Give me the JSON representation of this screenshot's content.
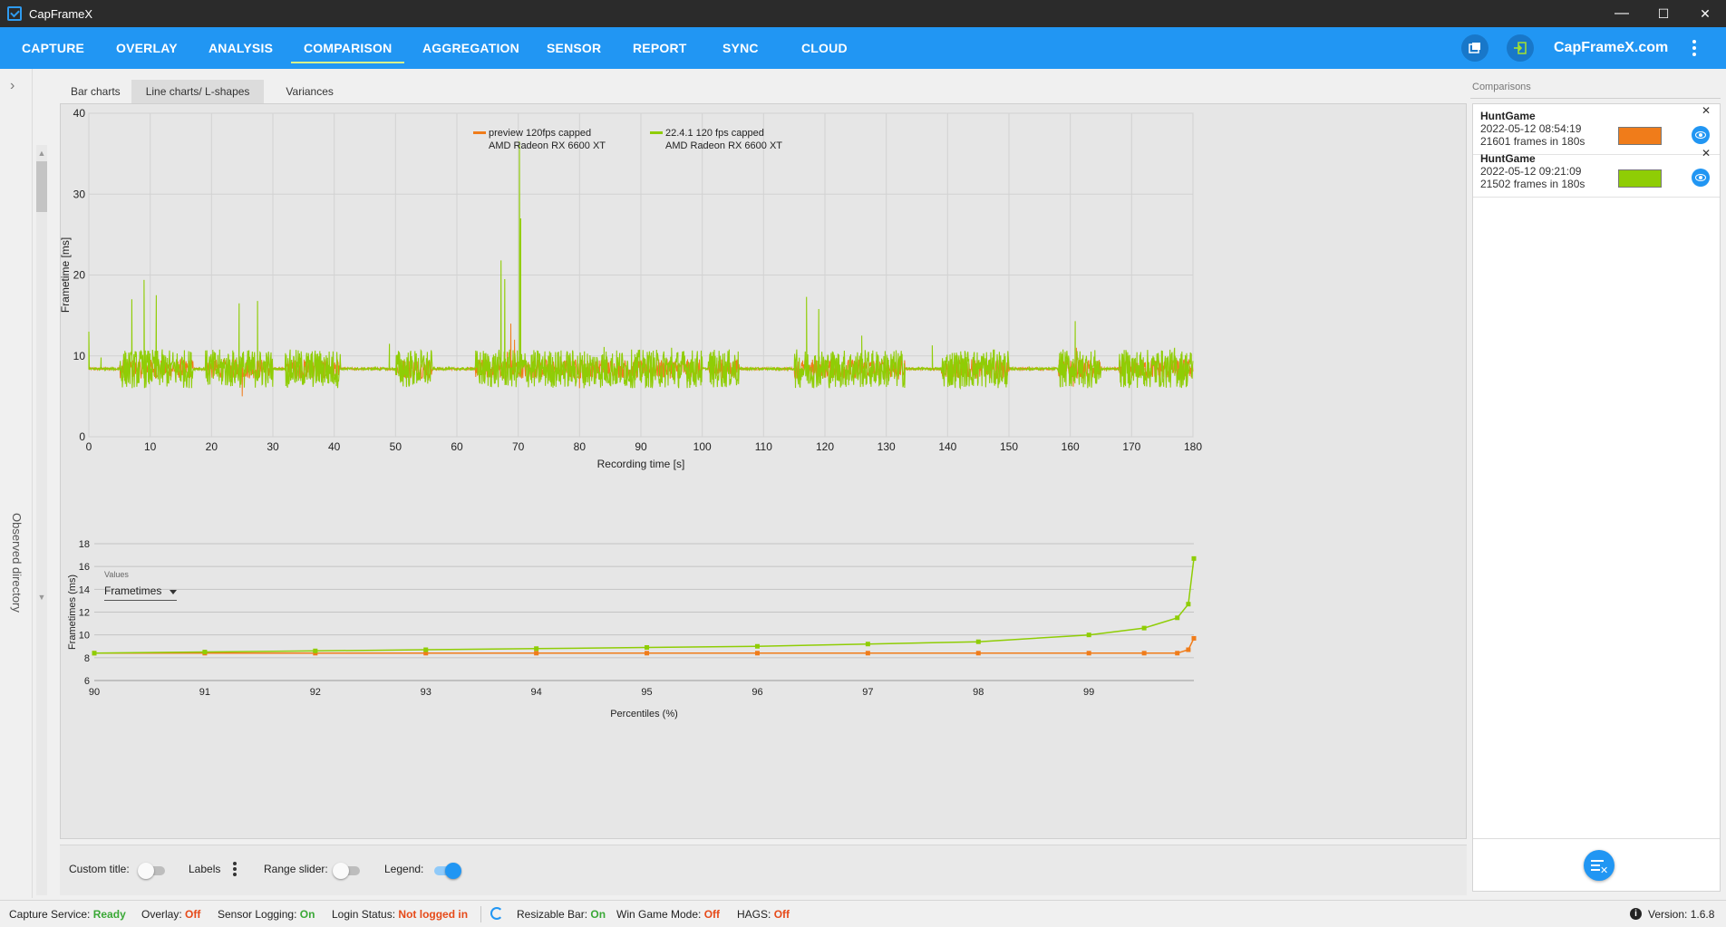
{
  "window": {
    "title": "CapFrameX",
    "minimize": "—",
    "maximize": "☐",
    "close": "✕"
  },
  "nav": {
    "items": [
      {
        "label": "CAPTURE"
      },
      {
        "label": "OVERLAY"
      },
      {
        "label": "ANALYSIS"
      },
      {
        "label": "COMPARISON"
      },
      {
        "label": "AGGREGATION"
      },
      {
        "label": "SENSOR"
      },
      {
        "label": "REPORT"
      },
      {
        "label": "SYNC"
      },
      {
        "label": "CLOUD"
      }
    ],
    "active": "COMPARISON",
    "brand": "CapFrameX.com"
  },
  "sidebar": {
    "observed_label": "Observed directory"
  },
  "subtabs": [
    {
      "label": "Bar charts"
    },
    {
      "label": "Line charts/ L-shapes"
    },
    {
      "label": "Variances"
    }
  ],
  "values_selector": {
    "label": "Values",
    "selected": "Frametimes"
  },
  "chart_data": [
    {
      "type": "line",
      "title": "",
      "xlabel": "Recording time [s]",
      "ylabel": "Frametime [ms]",
      "xlim": [
        0,
        180
      ],
      "ylim": [
        0,
        40
      ],
      "xticks": [
        0,
        10,
        20,
        30,
        40,
        50,
        60,
        70,
        80,
        90,
        100,
        110,
        120,
        130,
        140,
        150,
        160,
        170,
        180
      ],
      "yticks": [
        0,
        10,
        20,
        30,
        40
      ],
      "grid": true,
      "legend_position": "top-center",
      "series": [
        {
          "name": "preview 120fps capped",
          "subname": "AMD Radeon RX 6600 XT",
          "color": "#f07c1a",
          "baseline": 8.4,
          "spikes": [
            [
              25,
              5
            ],
            [
              67.8,
              7
            ],
            [
              68.2,
              10.5
            ],
            [
              68.8,
              14
            ],
            [
              69.4,
              12
            ],
            [
              80,
              6
            ],
            [
              82,
              7.2
            ],
            [
              160.5,
              6.2
            ],
            [
              161,
              11
            ],
            [
              132,
              7.1
            ]
          ]
        },
        {
          "name": "22.4.1 120 fps capped",
          "subname": "AMD Radeon RX 6600 XT",
          "color": "#8fcd05",
          "baseline": 8.4,
          "spikes": [
            [
              0,
              13
            ],
            [
              2,
              9.8
            ],
            [
              7,
              17
            ],
            [
              9,
              19.4
            ],
            [
              11,
              17.5
            ],
            [
              24.5,
              16.5
            ],
            [
              27.5,
              16.8
            ],
            [
              49,
              11.5
            ],
            [
              67.2,
              21.8
            ],
            [
              67.8,
              19.5
            ],
            [
              70.2,
              36.5
            ],
            [
              70.4,
              27
            ],
            [
              84,
              11.1
            ],
            [
              95,
              11
            ],
            [
              117,
              17.3
            ],
            [
              119,
              15.8
            ],
            [
              126,
              12.5
            ],
            [
              137.5,
              11.3
            ],
            [
              160.8,
              14.3
            ],
            [
              177,
              11
            ]
          ]
        }
      ]
    },
    {
      "type": "line",
      "title": "",
      "xlabel": "Percentiles (%)",
      "ylabel": "Frametimes (ms)",
      "xlim": [
        90,
        99.95
      ],
      "ylim": [
        6,
        18
      ],
      "xticks": [
        90,
        91,
        92,
        93,
        94,
        95,
        96,
        97,
        98,
        99
      ],
      "yticks": [
        6,
        8,
        10,
        12,
        14,
        16,
        18
      ],
      "grid": true,
      "series": [
        {
          "color": "#f07c1a",
          "x": [
            90,
            91,
            92,
            93,
            94,
            95,
            96,
            97,
            98,
            99,
            99.5,
            99.8,
            99.9,
            99.95
          ],
          "y": [
            8.4,
            8.4,
            8.4,
            8.4,
            8.4,
            8.4,
            8.4,
            8.4,
            8.4,
            8.4,
            8.4,
            8.4,
            8.7,
            9.7
          ]
        },
        {
          "color": "#8fcd05",
          "x": [
            90,
            91,
            92,
            93,
            94,
            95,
            96,
            97,
            98,
            99,
            99.5,
            99.8,
            99.9,
            99.95
          ],
          "y": [
            8.4,
            8.5,
            8.6,
            8.7,
            8.8,
            8.9,
            9.0,
            9.2,
            9.4,
            10.0,
            10.6,
            11.5,
            12.7,
            16.7
          ]
        }
      ]
    }
  ],
  "bottom_controls": {
    "custom_title": "Custom title:",
    "labels": "Labels",
    "range_slider": "Range slider:",
    "legend": "Legend:"
  },
  "comparisons": {
    "title": "Comparisons",
    "items": [
      {
        "name": "HuntGame",
        "date": "2022-05-12 08:54:19",
        "frames": "21601 frames in 180s",
        "color": "#f07c1a"
      },
      {
        "name": "HuntGame",
        "date": "2022-05-12 09:21:09",
        "frames": "21502 frames in 180s",
        "color": "#8fcd05"
      }
    ],
    "close_symbol": "✕"
  },
  "status": {
    "capture_service": "Capture Service:",
    "capture_service_value": "Ready",
    "overlay": "Overlay:",
    "overlay_value": "Off",
    "sensor_logging": "Sensor Logging:",
    "sensor_logging_value": "On",
    "login_status": "Login Status:",
    "login_status_value": "Not logged in",
    "resizable_bar": "Resizable Bar:",
    "resizable_bar_value": "On",
    "win_game_mode": "Win Game Mode:",
    "win_game_mode_value": "Off",
    "hags": "HAGS:",
    "hags_value": "Off",
    "version_label": "Version:",
    "version_value": "1.6.8"
  }
}
